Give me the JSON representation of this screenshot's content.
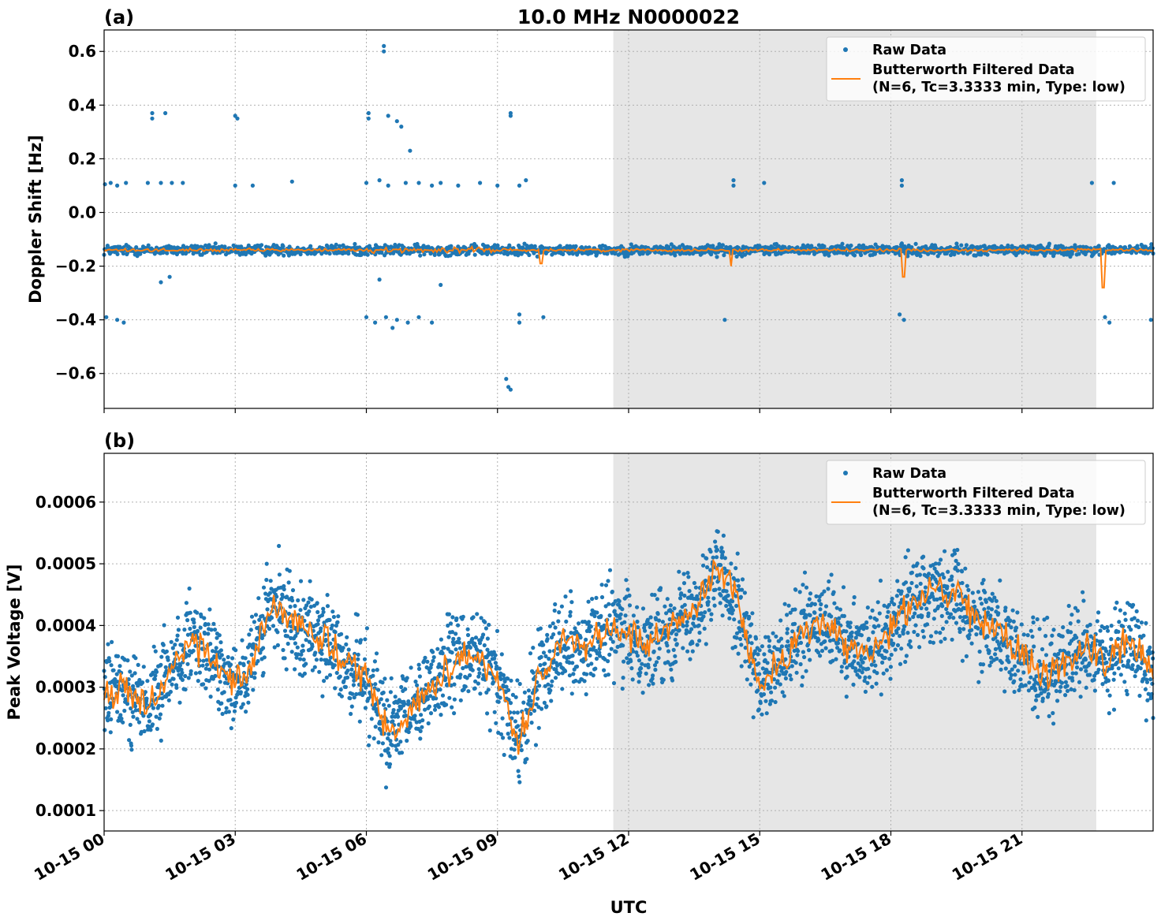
{
  "chart_data": {
    "title": "10.0 MHz N0000022",
    "xlabel": "UTC",
    "x_ticks": [
      "10-15 00",
      "10-15 03",
      "10-15 06",
      "10-15 09",
      "10-15 12",
      "10-15 15",
      "10-15 18",
      "10-15 21"
    ],
    "x_tick_hours": [
      0,
      3,
      6,
      9,
      12,
      15,
      18,
      21
    ],
    "xlim_hours": [
      0,
      24
    ],
    "shaded_region_hours": [
      11.65,
      22.7
    ],
    "colors": {
      "raw": "#1f77b4",
      "filtered": "#ff7f0e",
      "shade": "#e6e6e6"
    },
    "legend": {
      "raw_label": "Raw Data",
      "filtered_label_line1": "Butterworth Filtered Data",
      "filtered_label_line2": "(N=6, Tc=3.3333 min, Type: low)",
      "placement": "upper-right"
    },
    "panels": [
      {
        "id": "a",
        "panel_label": "(a)",
        "type": "scatter+line",
        "ylabel": "Doppler Shift [Hz]",
        "ylim": [
          -0.73,
          0.68
        ],
        "y_ticks": [
          0.6,
          0.4,
          0.2,
          0.0,
          -0.2,
          -0.4,
          -0.6
        ],
        "y_tick_labels": [
          "0.6",
          "0.4",
          "0.2",
          "0.0",
          "−0.2",
          "−0.4",
          "−0.6"
        ],
        "baseline": -0.14,
        "band_halfwidth": 0.018,
        "outliers": [
          [
            0.02,
            0.105
          ],
          [
            0.15,
            0.11
          ],
          [
            0.3,
            0.1
          ],
          [
            0.5,
            0.11
          ],
          [
            1.1,
            0.37
          ],
          [
            1.1,
            0.35
          ],
          [
            1.4,
            0.37
          ],
          [
            1.0,
            0.11
          ],
          [
            1.3,
            0.11
          ],
          [
            1.55,
            0.11
          ],
          [
            1.8,
            0.11
          ],
          [
            3.0,
            0.36
          ],
          [
            3.05,
            0.35
          ],
          [
            3.0,
            0.1
          ],
          [
            3.4,
            0.1
          ],
          [
            4.3,
            0.115
          ],
          [
            6.05,
            0.37
          ],
          [
            6.05,
            0.35
          ],
          [
            6.4,
            0.62
          ],
          [
            6.4,
            0.6
          ],
          [
            6.5,
            0.36
          ],
          [
            6.7,
            0.34
          ],
          [
            6.8,
            0.32
          ],
          [
            7.0,
            0.23
          ],
          [
            6.0,
            0.11
          ],
          [
            6.3,
            0.12
          ],
          [
            6.5,
            0.1
          ],
          [
            6.9,
            0.11
          ],
          [
            7.2,
            0.11
          ],
          [
            7.5,
            0.1
          ],
          [
            7.7,
            0.11
          ],
          [
            8.1,
            0.1
          ],
          [
            8.6,
            0.11
          ],
          [
            9.0,
            0.1
          ],
          [
            9.3,
            0.37
          ],
          [
            9.3,
            0.36
          ],
          [
            9.5,
            0.1
          ],
          [
            9.65,
            0.12
          ],
          [
            9.2,
            -0.62
          ],
          [
            9.25,
            -0.65
          ],
          [
            9.3,
            -0.66
          ],
          [
            14.4,
            0.12
          ],
          [
            14.4,
            0.1
          ],
          [
            15.1,
            0.11
          ],
          [
            18.25,
            0.12
          ],
          [
            18.25,
            0.1
          ],
          [
            22.6,
            0.11
          ],
          [
            23.1,
            0.11
          ],
          [
            0.05,
            -0.39
          ],
          [
            0.3,
            -0.4
          ],
          [
            0.45,
            -0.41
          ],
          [
            6.0,
            -0.39
          ],
          [
            6.2,
            -0.41
          ],
          [
            6.45,
            -0.39
          ],
          [
            6.7,
            -0.4
          ],
          [
            6.95,
            -0.41
          ],
          [
            7.2,
            -0.39
          ],
          [
            7.5,
            -0.41
          ],
          [
            9.5,
            -0.38
          ],
          [
            9.5,
            -0.41
          ],
          [
            10.05,
            -0.39
          ],
          [
            14.2,
            -0.4
          ],
          [
            18.2,
            -0.38
          ],
          [
            18.3,
            -0.4
          ],
          [
            22.9,
            -0.39
          ],
          [
            23.0,
            -0.41
          ],
          [
            23.95,
            -0.4
          ],
          [
            1.3,
            -0.26
          ],
          [
            1.5,
            -0.24
          ],
          [
            6.3,
            -0.25
          ],
          [
            7.7,
            -0.27
          ],
          [
            6.6,
            -0.43
          ]
        ],
        "filtered_spikes": [
          [
            18.3,
            -0.24
          ],
          [
            22.85,
            -0.28
          ],
          [
            14.35,
            -0.2
          ],
          [
            10.0,
            -0.19
          ]
        ]
      },
      {
        "id": "b",
        "panel_label": "(b)",
        "type": "scatter+line",
        "ylabel": "Peak Voltage [V]",
        "ylim": [
          6.7e-05,
          0.000679
        ],
        "y_ticks": [
          0.0006,
          0.0005,
          0.0004,
          0.0003,
          0.0002,
          0.0001
        ],
        "y_tick_labels": [
          "0.0006",
          "0.0005",
          "0.0004",
          "0.0003",
          "0.0002",
          "0.0001"
        ],
        "envelope_hours": [
          0,
          0.5,
          1.0,
          1.5,
          2.0,
          2.5,
          3.0,
          3.3,
          3.8,
          4.3,
          5.0,
          5.4,
          6.0,
          6.5,
          7.0,
          7.5,
          8.0,
          8.5,
          9.0,
          9.5,
          10.0,
          10.5,
          11.0,
          11.5,
          12.0,
          12.5,
          13.0,
          13.5,
          14.0,
          14.5,
          15.0,
          15.5,
          16.0,
          16.5,
          17.0,
          17.5,
          18.0,
          18.5,
          19.0,
          19.5,
          20.0,
          20.5,
          21.0,
          21.5,
          22.0,
          22.5,
          23.0,
          23.5,
          24.0
        ],
        "envelope_center": [
          0.00029,
          0.0003,
          0.00026,
          0.00033,
          0.00037,
          0.00034,
          0.00031,
          0.00032,
          0.00043,
          0.00041,
          0.00038,
          0.00034,
          0.00032,
          0.00022,
          0.00026,
          0.00031,
          0.00034,
          0.00036,
          0.00031,
          0.00021,
          0.00033,
          0.00038,
          0.00036,
          0.0004,
          0.00038,
          0.00037,
          0.0004,
          0.00043,
          0.00049,
          0.00044,
          0.0003,
          0.00034,
          0.00039,
          0.0004,
          0.00037,
          0.00035,
          0.0004,
          0.00044,
          0.00046,
          0.00045,
          0.00041,
          0.00039,
          0.00035,
          0.00032,
          0.00034,
          0.00036,
          0.00034,
          0.00038,
          0.00032
        ],
        "band_halfwidth": 8.5e-05
      }
    ]
  }
}
